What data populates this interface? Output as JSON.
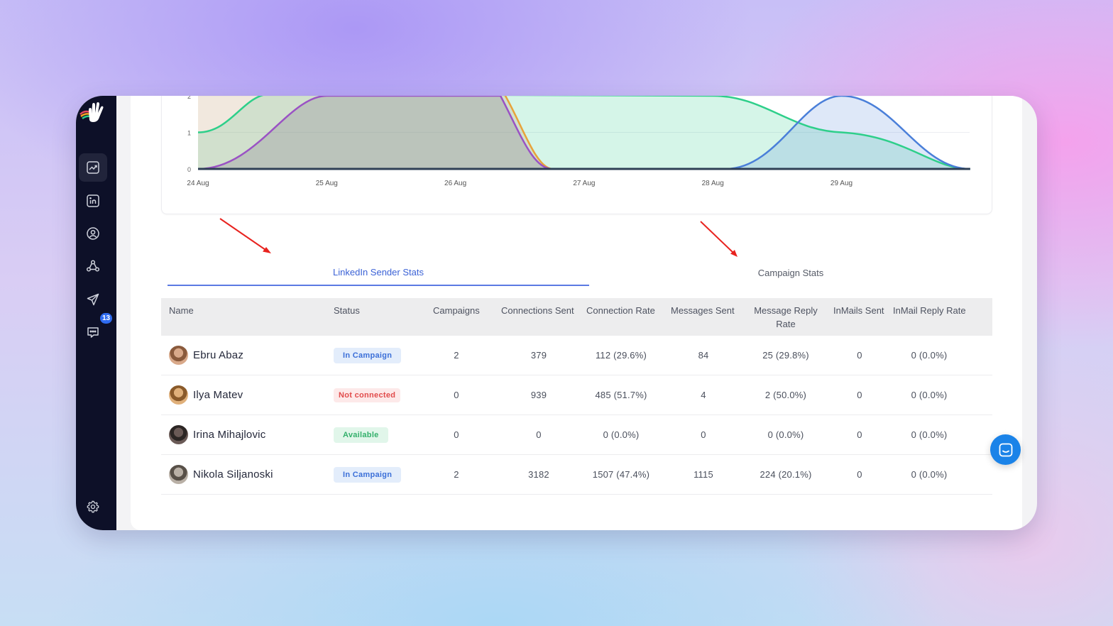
{
  "sidebar": {
    "items": [
      {
        "name": "analytics",
        "icon": "chart-trend-icon",
        "active": true
      },
      {
        "name": "linkedin",
        "icon": "linkedin-icon",
        "active": false
      },
      {
        "name": "contacts",
        "icon": "user-circle-icon",
        "active": false
      },
      {
        "name": "network",
        "icon": "network-icon",
        "active": false
      },
      {
        "name": "campaigns",
        "icon": "send-icon",
        "active": false
      },
      {
        "name": "messages",
        "icon": "chat-icon",
        "active": false,
        "badge": "13"
      }
    ],
    "settings_icon": "gear-icon"
  },
  "chart_data": {
    "type": "area",
    "x": [
      "24 Aug",
      "25 Aug",
      "26 Aug",
      "27 Aug",
      "28 Aug",
      "29 Aug"
    ],
    "y_ticks": [
      "0",
      "1",
      "2"
    ],
    "ylim": [
      0,
      2
    ],
    "series": [
      {
        "color": "#e8a33a"
      },
      {
        "color": "#2ecf8a"
      },
      {
        "color": "#9a52c4"
      },
      {
        "color": "#4a7fd9"
      },
      {
        "color": "#2e3f55"
      }
    ]
  },
  "tabs": [
    {
      "label": "LinkedIn Sender Stats",
      "active": true
    },
    {
      "label": "Campaign Stats",
      "active": false
    }
  ],
  "table": {
    "headers": {
      "name": "Name",
      "status": "Status",
      "campaigns": "Campaigns",
      "connections_sent": "Connections Sent",
      "connection_rate": "Connection Rate",
      "messages_sent": "Messages Sent",
      "message_reply_rate_1": "Message Reply",
      "message_reply_rate_2": "Rate",
      "inmails_sent": "InMails Sent",
      "inmail_reply_rate": "InMail Reply Rate"
    },
    "rows": [
      {
        "name": "Ebru Abaz",
        "status": "In Campaign",
        "status_type": "campaign",
        "campaigns": "2",
        "connections_sent": "379",
        "connection_rate": "112 (29.6%)",
        "messages_sent": "84",
        "message_reply_rate": "25 (29.8%)",
        "inmails_sent": "0",
        "inmail_reply_rate": "0 (0.0%)"
      },
      {
        "name": "Ilya Matev",
        "status": "Not connected",
        "status_type": "notconn",
        "campaigns": "0",
        "connections_sent": "939",
        "connection_rate": "485 (51.7%)",
        "messages_sent": "4",
        "message_reply_rate": "2 (50.0%)",
        "inmails_sent": "0",
        "inmail_reply_rate": "0 (0.0%)"
      },
      {
        "name": "Irina Mihajlovic",
        "status": "Available",
        "status_type": "available",
        "campaigns": "0",
        "connections_sent": "0",
        "connection_rate": "0 (0.0%)",
        "messages_sent": "0",
        "message_reply_rate": "0 (0.0%)",
        "inmails_sent": "0",
        "inmail_reply_rate": "0 (0.0%)"
      },
      {
        "name": "Nikola Siljanoski",
        "status": "In Campaign",
        "status_type": "campaign",
        "campaigns": "2",
        "connections_sent": "3182",
        "connection_rate": "1507 (47.4%)",
        "messages_sent": "1115",
        "message_reply_rate": "224 (20.1%)",
        "inmails_sent": "0",
        "inmail_reply_rate": "0 (0.0%)"
      }
    ]
  },
  "support_chat_icon": "chat-support-icon"
}
